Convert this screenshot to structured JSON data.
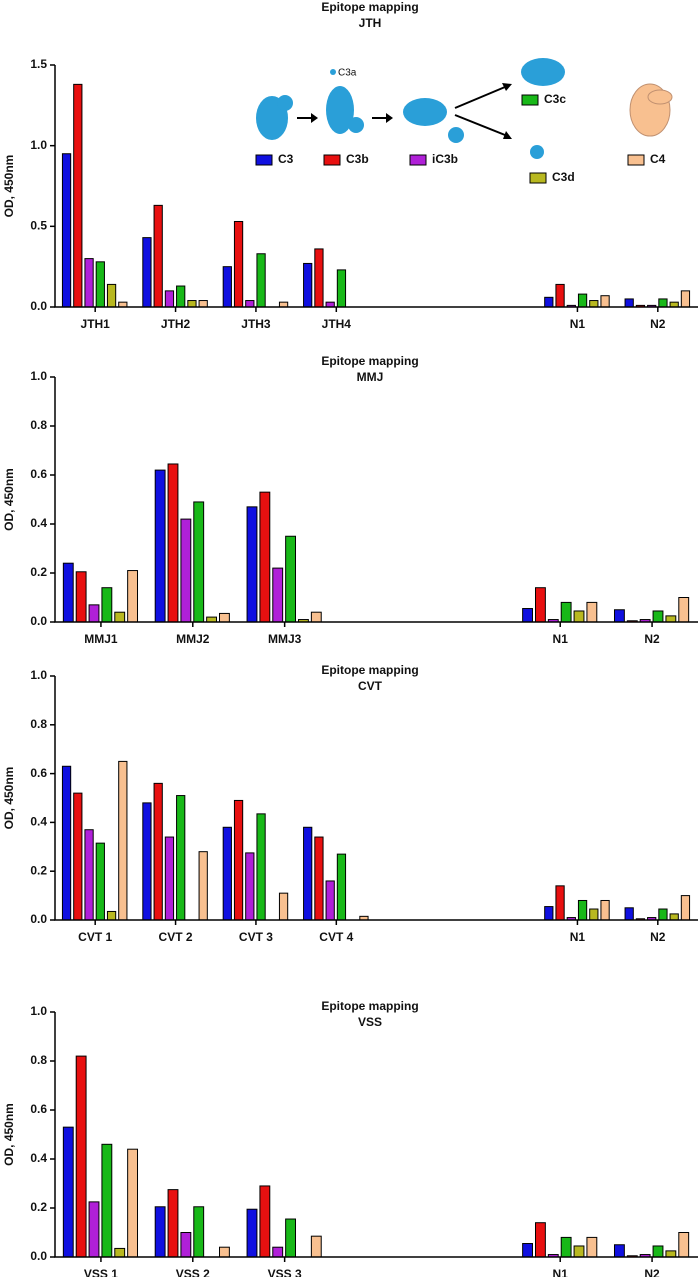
{
  "chart_data": [
    {
      "type": "bar",
      "title": "Epitope mapping",
      "subtitle": "JTH",
      "y_label": "OD, 450nm",
      "annotation": "C3a",
      "categories": [
        "JTH1",
        "JTH2",
        "JTH3",
        "JTH4",
        null,
        null,
        "N1",
        "N2"
      ],
      "ylim": [
        0,
        1.5
      ],
      "yticks": [
        {
          "value": 0,
          "label": "0.0"
        },
        0.5,
        {
          "value": 1,
          "label": "1.0"
        },
        1.5
      ],
      "series": [
        {
          "name": "C3",
          "color": "#1010e0",
          "values": [
            0.95,
            0.43,
            0.25,
            0.27,
            null,
            null,
            0.06,
            0.05
          ]
        },
        {
          "name": "C3b",
          "color": "#e81010",
          "values": [
            1.38,
            0.63,
            0.53,
            0.36,
            null,
            null,
            0.14,
            0.01
          ]
        },
        {
          "name": "iC3b",
          "color": "#b020d8",
          "values": [
            0.3,
            0.1,
            0.04,
            0.03,
            null,
            null,
            0.01,
            0.01
          ]
        },
        {
          "name": "C3c",
          "color": "#18b818",
          "values": [
            0.28,
            0.13,
            0.33,
            0.23,
            null,
            null,
            0.08,
            0.05
          ]
        },
        {
          "name": "C3d",
          "color": "#b8b820",
          "values": [
            0.14,
            0.04,
            0,
            0,
            null,
            null,
            0.04,
            0.03
          ]
        },
        {
          "name": "C4",
          "color": "#f8c090",
          "values": [
            0.03,
            0.04,
            0.03,
            0,
            null,
            null,
            0.07,
            0.1
          ]
        }
      ]
    },
    {
      "type": "bar",
      "title": "Epitope mapping",
      "subtitle": "MMJ",
      "y_label": "OD, 450nm",
      "categories": [
        "MMJ1",
        "MMJ2",
        "MMJ3",
        null,
        null,
        "N1",
        "N2"
      ],
      "ylim": [
        0,
        1
      ],
      "yticks": [
        {
          "value": 0,
          "label": "0.0"
        },
        0.2,
        0.4,
        0.6,
        0.8,
        {
          "value": 1,
          "label": "1.0"
        }
      ],
      "series": [
        {
          "color": "#1010e0",
          "values": [
            0.24,
            0.62,
            0.47,
            null,
            null,
            0.055,
            0.05
          ]
        },
        {
          "color": "#e81010",
          "values": [
            0.205,
            0.645,
            0.53,
            null,
            null,
            0.14,
            0.005
          ]
        },
        {
          "color": "#b020d8",
          "values": [
            0.07,
            0.42,
            0.22,
            null,
            null,
            0.01,
            0.01
          ]
        },
        {
          "color": "#18b818",
          "values": [
            0.14,
            0.49,
            0.35,
            null,
            null,
            0.08,
            0.045
          ]
        },
        {
          "color": "#b8b820",
          "values": [
            0.04,
            0.02,
            0.01,
            null,
            null,
            0.045,
            0.025
          ]
        },
        {
          "color": "#f8c090",
          "values": [
            0.21,
            0.035,
            0.04,
            null,
            null,
            0.08,
            0.1
          ]
        }
      ]
    },
    {
      "type": "bar",
      "title": "Epitope mapping",
      "subtitle": "CVT",
      "y_label": "OD, 450nm",
      "categories": [
        "CVT 1",
        "CVT 2",
        "CVT 3",
        "CVT 4",
        null,
        null,
        "N1",
        "N2"
      ],
      "ylim": [
        0,
        1
      ],
      "yticks": [
        {
          "value": 0,
          "label": "0.0"
        },
        0.2,
        0.4,
        0.6,
        0.8,
        {
          "value": 1,
          "label": "1.0"
        }
      ],
      "series": [
        {
          "color": "#1010e0",
          "values": [
            0.63,
            0.48,
            0.38,
            0.38,
            null,
            null,
            0.055,
            0.05
          ]
        },
        {
          "color": "#e81010",
          "values": [
            0.52,
            0.56,
            0.49,
            0.34,
            null,
            null,
            0.14,
            0.005
          ]
        },
        {
          "color": "#b020d8",
          "values": [
            0.37,
            0.34,
            0.275,
            0.16,
            null,
            null,
            0.01,
            0.01
          ]
        },
        {
          "color": "#18b818",
          "values": [
            0.315,
            0.51,
            0.435,
            0.27,
            null,
            null,
            0.08,
            0.045
          ]
        },
        {
          "color": "#b8b820",
          "values": [
            0.035,
            0,
            0,
            0,
            null,
            null,
            0.045,
            0.025
          ]
        },
        {
          "color": "#f8c090",
          "values": [
            0.65,
            0.28,
            0.11,
            0.015,
            null,
            null,
            0.08,
            0.1
          ]
        }
      ]
    },
    {
      "type": "bar",
      "title": "Epitope mapping",
      "subtitle": "VSS",
      "y_label": "OD, 450nm",
      "categories": [
        "VSS 1",
        "VSS 2",
        "VSS 3",
        null,
        null,
        "N1",
        "N2"
      ],
      "ylim": [
        0,
        1
      ],
      "yticks": [
        {
          "value": 0,
          "label": "0.0"
        },
        0.2,
        0.4,
        0.6,
        0.8,
        {
          "value": 1,
          "label": "1.0"
        }
      ],
      "series": [
        {
          "color": "#1010e0",
          "values": [
            0.53,
            0.205,
            0.195,
            null,
            null,
            0.055,
            0.05
          ]
        },
        {
          "color": "#e81010",
          "values": [
            0.82,
            0.275,
            0.29,
            null,
            null,
            0.14,
            0.005
          ]
        },
        {
          "color": "#b020d8",
          "values": [
            0.225,
            0.1,
            0.04,
            null,
            null,
            0.01,
            0.01
          ]
        },
        {
          "color": "#18b818",
          "values": [
            0.46,
            0.205,
            0.155,
            null,
            null,
            0.08,
            0.045
          ]
        },
        {
          "color": "#b8b820",
          "values": [
            0.035,
            0,
            0,
            null,
            null,
            0.045,
            0.025
          ]
        },
        {
          "color": "#f8c090",
          "values": [
            0.44,
            0.04,
            0.085,
            null,
            null,
            0.08,
            0.1
          ]
        }
      ]
    }
  ]
}
